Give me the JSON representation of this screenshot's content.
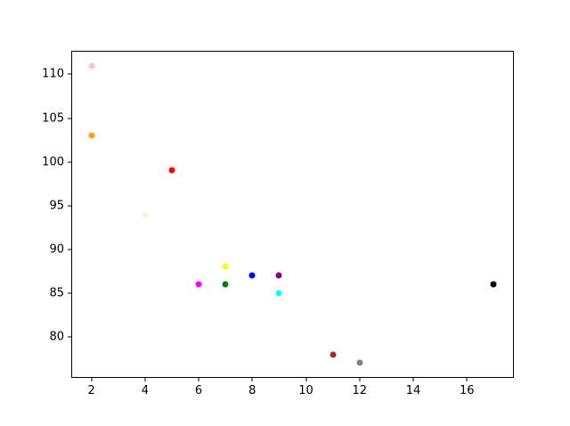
{
  "chart_data": {
    "type": "scatter",
    "title": "",
    "xlabel": "",
    "ylabel": "",
    "xlim": [
      1.25,
      17.75
    ],
    "ylim": [
      75.3,
      112.7
    ],
    "x_ticks": [
      2,
      4,
      6,
      8,
      10,
      12,
      14,
      16
    ],
    "y_ticks": [
      80,
      85,
      90,
      95,
      100,
      105,
      110
    ],
    "grid": false,
    "legend": "none",
    "marker": "circle",
    "marker_diameter_px": 7,
    "background_color": "#ffffff",
    "spine_color": "#000000",
    "tick_label_color": "#000000",
    "points": [
      {
        "x": 2,
        "y": 111,
        "color": "#FFC0CB",
        "color_name": "pink"
      },
      {
        "x": 2,
        "y": 103,
        "color": "#FFA500",
        "color_name": "orange"
      },
      {
        "x": 4,
        "y": 94,
        "color": "#F5F5DC",
        "color_name": "beige"
      },
      {
        "x": 5,
        "y": 99,
        "color": "#FF0000",
        "color_name": "red"
      },
      {
        "x": 6,
        "y": 86,
        "color": "#FF00FF",
        "color_name": "magenta"
      },
      {
        "x": 7,
        "y": 88,
        "color": "#FFFF00",
        "color_name": "yellow"
      },
      {
        "x": 7,
        "y": 86,
        "color": "#008000",
        "color_name": "green"
      },
      {
        "x": 8,
        "y": 87,
        "color": "#0000FF",
        "color_name": "blue"
      },
      {
        "x": 9,
        "y": 87,
        "color": "#800080",
        "color_name": "purple"
      },
      {
        "x": 9,
        "y": 85,
        "color": "#00FFFF",
        "color_name": "cyan"
      },
      {
        "x": 11,
        "y": 78,
        "color": "#A52A2A",
        "color_name": "brown"
      },
      {
        "x": 12,
        "y": 77,
        "color": "#808080",
        "color_name": "gray"
      },
      {
        "x": 17,
        "y": 86,
        "color": "#000000",
        "color_name": "black"
      }
    ]
  }
}
